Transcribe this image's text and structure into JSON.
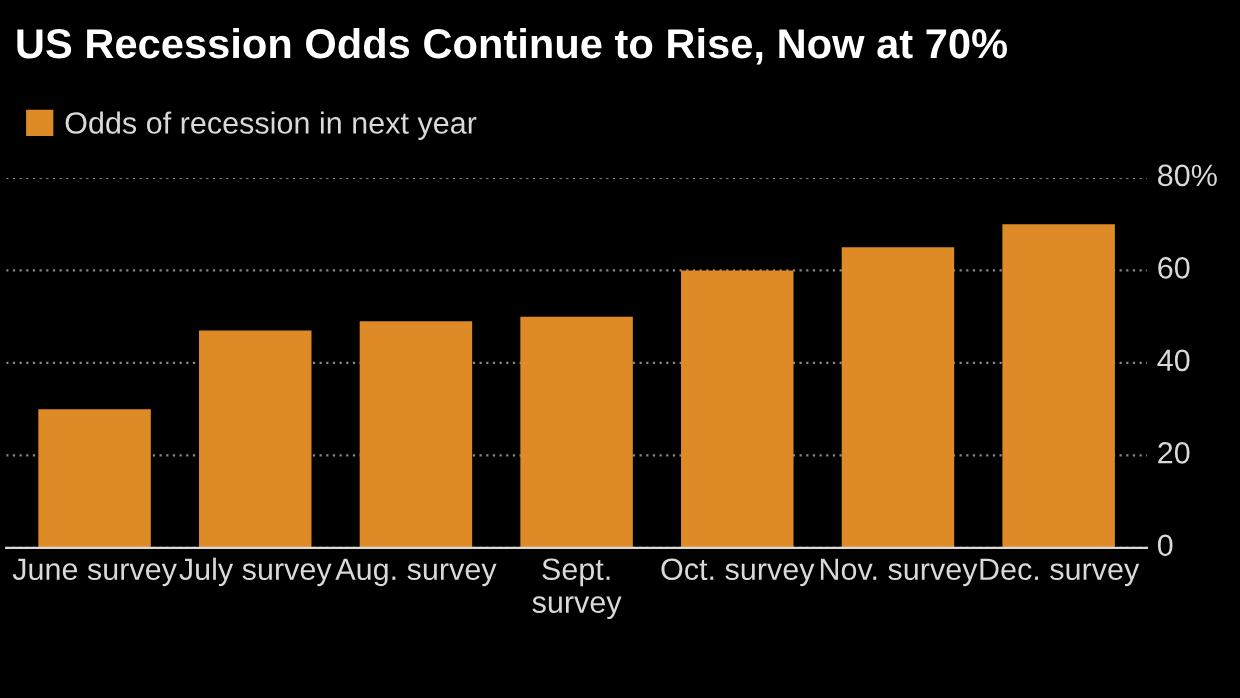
{
  "chart_data": {
    "type": "bar",
    "title": "US Recession Odds Continue to Rise, Now at 70%",
    "categories": [
      "June survey",
      "July survey",
      "Aug. survey",
      "Sept.\nsurvey",
      "Oct. survey",
      "Nov. survey",
      "Dec. survey"
    ],
    "series": [
      {
        "name": "Odds of recession in next year",
        "color": "#de8b27",
        "values": [
          30,
          47,
          49,
          50,
          60,
          65,
          70
        ]
      }
    ],
    "ylim": [
      0,
      80
    ],
    "yticks": [
      0,
      20,
      40,
      60,
      {
        "value": 80,
        "label": "80%"
      }
    ],
    "grid": "y",
    "legend": "top left"
  }
}
